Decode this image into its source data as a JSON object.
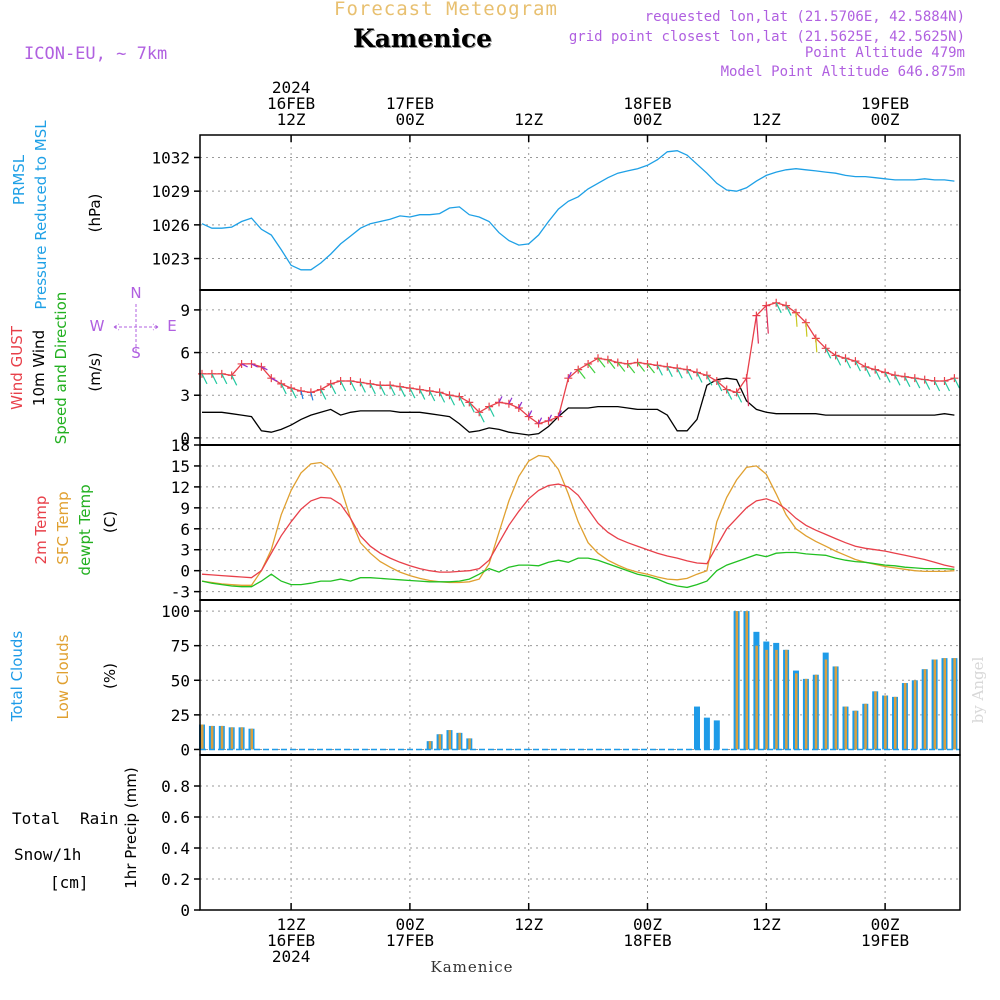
{
  "header": {
    "title": "Forecast Meteogram",
    "location": "Kamenice",
    "model": "ICON-EU, ~ 7km",
    "requested": "requested lon,lat (21.5706E, 42.5884N)",
    "gridpoint": "grid point closest lon,lat (21.5625E, 42.5625N)",
    "point_alt": "Point Altitude 479m",
    "model_alt": "Model Point Altitude 646.875m",
    "footer": "Kamenice",
    "credit": "by Angel"
  },
  "colors": {
    "pressure": "#1ea0e6",
    "gust": "#e8404a",
    "wind": "#000000",
    "t2m": "#e8404a",
    "sfc": "#e0a030",
    "dew": "#22c022",
    "total_cloud": "#1e9be8",
    "low_cloud": "#d8a040",
    "header_purple": "#b060e0",
    "header_gold": "#e8c070"
  },
  "x_axis": {
    "top": [
      {
        "t": 9,
        "lines": [
          "2024",
          "16FEB",
          "12Z"
        ]
      },
      {
        "t": 21,
        "lines": [
          "17FEB",
          "00Z"
        ]
      },
      {
        "t": 33,
        "lines": [
          "12Z"
        ]
      },
      {
        "t": 45,
        "lines": [
          "18FEB",
          "00Z"
        ]
      },
      {
        "t": 57,
        "lines": [
          "12Z"
        ]
      },
      {
        "t": 69,
        "lines": [
          "19FEB",
          "00Z"
        ]
      }
    ],
    "bottom": [
      {
        "t": 9,
        "lines": [
          "12Z",
          "16FEB",
          "2024"
        ]
      },
      {
        "t": 21,
        "lines": [
          "00Z",
          "17FEB"
        ]
      },
      {
        "t": 33,
        "lines": [
          "12Z"
        ]
      },
      {
        "t": 45,
        "lines": [
          "00Z",
          "18FEB"
        ]
      },
      {
        "t": 57,
        "lines": [
          "12Z"
        ]
      },
      {
        "t": 69,
        "lines": [
          "00Z",
          "19FEB"
        ]
      }
    ]
  },
  "labels": {
    "pressure": [
      "PRMSL",
      "Pressure Reduced to MSL",
      "(hPa)"
    ],
    "wind": [
      "Wind GUST",
      "10m Wind",
      "Speed and Direction",
      "(m/s)"
    ],
    "compass": {
      "n": "N",
      "s": "S",
      "w": "W",
      "e": "E"
    },
    "temp": [
      "2m Temp",
      "SFC Temp",
      "dewpt Temp",
      "(C)"
    ],
    "cloud": [
      "Total Clouds",
      "Low Clouds",
      "(%)"
    ],
    "precip": [
      "Total",
      "Rain",
      "Snow/1h",
      "[cm]",
      "1hr Precip (mm)"
    ]
  },
  "chart_data": [
    {
      "type": "line",
      "name": "PRMSL",
      "y_ticks": [
        1023,
        1026,
        1029,
        1032
      ],
      "ylim": [
        1020.2,
        1034
      ],
      "grid": true,
      "x_hours_from_00Z_16FEB": [
        0,
        1,
        2,
        3,
        4,
        5,
        6,
        7,
        8,
        9,
        10,
        11,
        12,
        13,
        14,
        15,
        16,
        17,
        18,
        19,
        20,
        21,
        22,
        23,
        24,
        25,
        26,
        27,
        28,
        29,
        30,
        31,
        32,
        33,
        34,
        35,
        36,
        37,
        38,
        39,
        40,
        41,
        42,
        43,
        44,
        45,
        46,
        47,
        48,
        49,
        50,
        51,
        52,
        53,
        54,
        55,
        56,
        57,
        58,
        59,
        60,
        61,
        62,
        63,
        64,
        65,
        66,
        67,
        68,
        69,
        70,
        71,
        72,
        73,
        74,
        75,
        76
      ],
      "values": [
        1026.1,
        1025.7,
        1025.7,
        1025.8,
        1026.3,
        1026.6,
        1025.6,
        1025.1,
        1023.8,
        1022.4,
        1022.0,
        1022.0,
        1022.6,
        1023.4,
        1024.3,
        1025.0,
        1025.7,
        1026.1,
        1026.3,
        1026.5,
        1026.8,
        1026.7,
        1026.9,
        1026.9,
        1027.0,
        1027.5,
        1027.6,
        1026.9,
        1026.7,
        1026.3,
        1025.3,
        1024.6,
        1024.2,
        1024.3,
        1025.1,
        1026.3,
        1027.4,
        1028.1,
        1028.5,
        1029.2,
        1029.7,
        1030.2,
        1030.6,
        1030.8,
        1031.0,
        1031.3,
        1031.8,
        1032.5,
        1032.6,
        1032.2,
        1031.4,
        1030.6,
        1029.7,
        1029.1,
        1029.0,
        1029.3,
        1029.9,
        1030.4,
        1030.7,
        1030.9,
        1031.0,
        1030.9,
        1030.8,
        1030.7,
        1030.6,
        1030.4,
        1030.3,
        1030.3,
        1030.2,
        1030.1,
        1030.0,
        1030.0,
        1030.0,
        1030.1,
        1030.0,
        1030.0,
        1029.9
      ]
    },
    {
      "type": "line",
      "name": "Wind GUST / 10m Wind",
      "y_ticks": [
        0,
        3,
        6,
        9
      ],
      "ylim": [
        -0.5,
        10.4
      ],
      "grid": true,
      "x_hours_from_00Z_16FEB": [
        0,
        1,
        2,
        3,
        4,
        5,
        6,
        7,
        8,
        9,
        10,
        11,
        12,
        13,
        14,
        15,
        16,
        17,
        18,
        19,
        20,
        21,
        22,
        23,
        24,
        25,
        26,
        27,
        28,
        29,
        30,
        31,
        32,
        33,
        34,
        35,
        36,
        37,
        38,
        39,
        40,
        41,
        42,
        43,
        44,
        45,
        46,
        47,
        48,
        49,
        50,
        51,
        52,
        53,
        54,
        55,
        56,
        57,
        58,
        59,
        60,
        61,
        62,
        63,
        64,
        65,
        66,
        67,
        68,
        69,
        70,
        71,
        72,
        73,
        74,
        75,
        76
      ],
      "series": [
        {
          "name": "Wind GUST",
          "values": [
            4.5,
            4.5,
            4.5,
            4.4,
            5.2,
            5.2,
            5.0,
            4.2,
            3.8,
            3.5,
            3.3,
            3.2,
            3.4,
            3.8,
            4.0,
            4.0,
            3.9,
            3.8,
            3.7,
            3.7,
            3.6,
            3.5,
            3.4,
            3.3,
            3.2,
            3.0,
            2.9,
            2.5,
            1.8,
            2.2,
            2.5,
            2.4,
            2.1,
            1.5,
            1.0,
            1.2,
            1.5,
            4.2,
            4.8,
            5.2,
            5.6,
            5.5,
            5.3,
            5.2,
            5.3,
            5.2,
            5.1,
            5.0,
            4.9,
            4.8,
            4.6,
            4.4,
            4.0,
            3.4,
            3.2,
            4.2,
            8.6,
            9.3,
            9.5,
            9.3,
            8.8,
            8.1,
            7.0,
            6.3,
            5.8,
            5.6,
            5.4,
            5.0,
            4.8,
            4.6,
            4.4,
            4.3,
            4.2,
            4.1,
            4.0,
            4.0,
            4.2
          ]
        },
        {
          "name": "10m Wind",
          "values": [
            1.8,
            1.8,
            1.8,
            1.7,
            1.6,
            1.5,
            0.5,
            0.4,
            0.6,
            0.9,
            1.3,
            1.6,
            1.8,
            2.0,
            1.6,
            1.8,
            1.9,
            1.9,
            1.9,
            1.9,
            1.8,
            1.8,
            1.8,
            1.7,
            1.6,
            1.5,
            1.0,
            0.4,
            0.5,
            0.7,
            0.6,
            0.4,
            0.3,
            0.2,
            0.3,
            0.8,
            1.5,
            2.1,
            2.1,
            2.1,
            2.2,
            2.2,
            2.2,
            2.1,
            2.0,
            2.0,
            2.0,
            1.6,
            0.5,
            0.5,
            1.3,
            3.7,
            4.1,
            4.2,
            4.1,
            2.6,
            2.0,
            1.8,
            1.7,
            1.7,
            1.7,
            1.7,
            1.7,
            1.6,
            1.6,
            1.6,
            1.6,
            1.6,
            1.6,
            1.6,
            1.6,
            1.6,
            1.6,
            1.6,
            1.6,
            1.7,
            1.6
          ]
        }
      ]
    },
    {
      "type": "line",
      "name": "Temperature",
      "y_ticks": [
        -3,
        0,
        3,
        6,
        9,
        12,
        15,
        18
      ],
      "ylim": [
        -4.2,
        18
      ],
      "grid": true,
      "x_hours_from_00Z_16FEB": [
        0,
        1,
        2,
        3,
        4,
        5,
        6,
        7,
        8,
        9,
        10,
        11,
        12,
        13,
        14,
        15,
        16,
        17,
        18,
        19,
        20,
        21,
        22,
        23,
        24,
        25,
        26,
        27,
        28,
        29,
        30,
        31,
        32,
        33,
        34,
        35,
        36,
        37,
        38,
        39,
        40,
        41,
        42,
        43,
        44,
        45,
        46,
        47,
        48,
        49,
        50,
        51,
        52,
        53,
        54,
        55,
        56,
        57,
        58,
        59,
        60,
        61,
        62,
        63,
        64,
        65,
        66,
        67,
        68,
        69,
        70,
        71,
        72,
        73,
        74,
        75,
        76
      ],
      "series": [
        {
          "name": "2m Temp",
          "values": [
            -0.5,
            -0.6,
            -0.7,
            -0.8,
            -0.9,
            -1.0,
            0.0,
            2.5,
            5.0,
            7.0,
            8.8,
            10.0,
            10.5,
            10.4,
            9.5,
            7.5,
            5.0,
            3.5,
            2.5,
            1.8,
            1.2,
            0.7,
            0.3,
            0.0,
            -0.2,
            -0.2,
            -0.1,
            0.0,
            0.3,
            1.5,
            4.0,
            6.5,
            8.5,
            10.3,
            11.5,
            12.2,
            12.4,
            12.0,
            10.8,
            8.8,
            6.8,
            5.5,
            4.6,
            4.0,
            3.5,
            3.0,
            2.5,
            2.1,
            1.8,
            1.4,
            1.1,
            1.0,
            3.5,
            6.0,
            7.5,
            9.0,
            10.0,
            10.3,
            9.8,
            8.8,
            7.5,
            6.5,
            5.8,
            5.2,
            4.6,
            4.0,
            3.5,
            3.2,
            3.0,
            2.8,
            2.5,
            2.2,
            1.9,
            1.6,
            1.2,
            0.8,
            0.5
          ]
        },
        {
          "name": "SFC Temp",
          "values": [
            -1.5,
            -1.7,
            -1.9,
            -2.0,
            -2.1,
            -2.1,
            0.0,
            3.0,
            8.0,
            11.5,
            14.0,
            15.3,
            15.5,
            14.5,
            12.0,
            7.5,
            4.0,
            2.5,
            1.3,
            0.5,
            -0.2,
            -0.7,
            -1.1,
            -1.4,
            -1.6,
            -1.7,
            -1.7,
            -1.6,
            -1.2,
            1.0,
            5.5,
            10.0,
            13.5,
            15.7,
            16.5,
            16.3,
            14.5,
            11.0,
            7.0,
            4.0,
            2.5,
            1.5,
            0.8,
            0.2,
            -0.2,
            -0.5,
            -0.9,
            -1.2,
            -1.3,
            -1.1,
            -0.5,
            0.0,
            7.0,
            10.5,
            13.0,
            14.8,
            15.0,
            13.8,
            11.0,
            8.0,
            6.0,
            5.0,
            4.2,
            3.5,
            2.8,
            2.2,
            1.6,
            1.2,
            0.9,
            0.6,
            0.4,
            0.2,
            0.0,
            -0.1,
            -0.1,
            -0.1,
            0.0
          ]
        },
        {
          "name": "dewpt Temp",
          "values": [
            -1.5,
            -1.8,
            -2.0,
            -2.2,
            -2.3,
            -2.3,
            -1.5,
            -0.5,
            -1.5,
            -2.0,
            -2.0,
            -1.8,
            -1.5,
            -1.5,
            -1.2,
            -1.5,
            -1.0,
            -1.0,
            -1.1,
            -1.2,
            -1.3,
            -1.4,
            -1.5,
            -1.6,
            -1.6,
            -1.6,
            -1.5,
            -1.2,
            -0.5,
            0.3,
            -0.2,
            0.5,
            0.8,
            0.8,
            0.7,
            1.2,
            1.5,
            1.2,
            1.8,
            1.8,
            1.5,
            1.0,
            0.5,
            0.0,
            -0.5,
            -0.8,
            -1.2,
            -1.8,
            -2.2,
            -2.4,
            -2.0,
            -1.5,
            0.0,
            0.8,
            1.3,
            1.8,
            2.3,
            2.0,
            2.5,
            2.6,
            2.6,
            2.4,
            2.3,
            2.2,
            1.8,
            1.5,
            1.3,
            1.2,
            1.0,
            0.8,
            0.7,
            0.5,
            0.4,
            0.3,
            0.3,
            0.3,
            0.2
          ]
        }
      ]
    },
    {
      "type": "bar",
      "name": "Clouds",
      "y_ticks": [
        0,
        25,
        50,
        75,
        100
      ],
      "ylim": [
        -4,
        108
      ],
      "grid": true,
      "x_hours_from_00Z_16FEB": [
        0,
        1,
        2,
        3,
        4,
        5,
        6,
        7,
        8,
        9,
        10,
        11,
        12,
        13,
        14,
        15,
        16,
        17,
        18,
        19,
        20,
        21,
        22,
        23,
        24,
        25,
        26,
        27,
        28,
        29,
        30,
        31,
        32,
        33,
        34,
        35,
        36,
        37,
        38,
        39,
        40,
        41,
        42,
        43,
        44,
        45,
        46,
        47,
        48,
        49,
        50,
        51,
        52,
        53,
        54,
        55,
        56,
        57,
        58,
        59,
        60,
        61,
        62,
        63,
        64,
        65,
        66,
        67,
        68,
        69,
        70,
        71,
        72,
        73,
        74,
        75,
        76
      ],
      "series": [
        {
          "name": "Total Clouds",
          "values": [
            18,
            17,
            17,
            16,
            16,
            15,
            0,
            0,
            0,
            0,
            0,
            0,
            0,
            0,
            0,
            0,
            0,
            0,
            0,
            0,
            0,
            0,
            0,
            6,
            11,
            14,
            12,
            8,
            0,
            0,
            0,
            0,
            0,
            0,
            0,
            0,
            0,
            0,
            0,
            0,
            0,
            0,
            0,
            0,
            0,
            0,
            0,
            0,
            0,
            0,
            31,
            23,
            21,
            0,
            100,
            100,
            85,
            78,
            77,
            72,
            57,
            51,
            54,
            70,
            60,
            31,
            28,
            33,
            42,
            39,
            38,
            48,
            50,
            58,
            65,
            66,
            66
          ]
        },
        {
          "name": "Low Clouds",
          "values": [
            18,
            17,
            17,
            16,
            16,
            15,
            0,
            0,
            0,
            0,
            0,
            0,
            0,
            0,
            0,
            0,
            0,
            0,
            0,
            0,
            0,
            0,
            0,
            6,
            11,
            14,
            12,
            8,
            0,
            0,
            0,
            0,
            0,
            0,
            0,
            0,
            0,
            0,
            0,
            0,
            0,
            0,
            0,
            0,
            0,
            0,
            0,
            0,
            0,
            0,
            0,
            0,
            0,
            0,
            100,
            100,
            75,
            72,
            72,
            72,
            55,
            51,
            54,
            65,
            60,
            31,
            28,
            33,
            42,
            39,
            38,
            48,
            50,
            58,
            65,
            66,
            66
          ]
        }
      ]
    },
    {
      "type": "bar",
      "name": "1hr Precip",
      "y_ticks": [
        0,
        0.2,
        0.4,
        0.6,
        0.8
      ],
      "ylim": [
        0,
        1.0
      ],
      "grid": true,
      "series": []
    }
  ]
}
